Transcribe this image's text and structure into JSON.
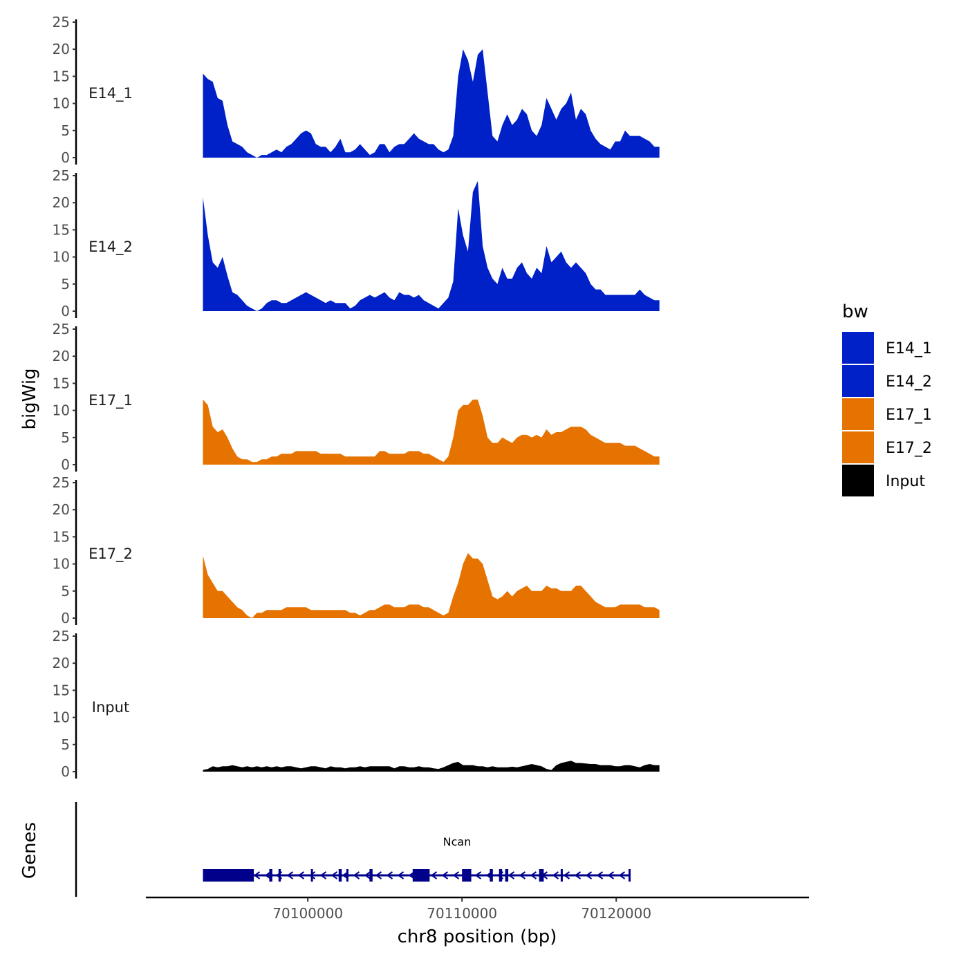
{
  "chart_data": {
    "type": "area",
    "y_axis_title": "bigWig",
    "x_axis_title": "chr8 position (bp)",
    "genes_axis_title": "Genes",
    "y_range": [
      0,
      25
    ],
    "y_ticks": [
      "0",
      "5",
      "10",
      "15",
      "20",
      "25"
    ],
    "x_range": [
      70089500,
      70132500
    ],
    "x_ticks": [
      {
        "value": 70100000,
        "label": "70100000"
      },
      {
        "value": 70110000,
        "label": "70110000"
      },
      {
        "value": 70120000,
        "label": "70120000"
      }
    ],
    "signal_range": [
      70093200,
      70122800
    ],
    "legend": {
      "title": "bw",
      "items": [
        {
          "label": "E14_1",
          "color": "#0020c8"
        },
        {
          "label": "E14_2",
          "color": "#0020c8"
        },
        {
          "label": "E17_1",
          "color": "#e67300"
        },
        {
          "label": "E17_2",
          "color": "#e67300"
        },
        {
          "label": "Input",
          "color": "#000000"
        }
      ]
    },
    "series": [
      {
        "name": "E14_1",
        "color": "#0020c8",
        "values": [
          15.5,
          14.5,
          14,
          11,
          10.5,
          6,
          3,
          2.5,
          2,
          1,
          0.5,
          0,
          0.5,
          0.5,
          1,
          1.5,
          1,
          2,
          2.5,
          3.5,
          4.5,
          5,
          4.5,
          2.5,
          2,
          2,
          1,
          2,
          3.5,
          1,
          1,
          1.5,
          2.5,
          1.5,
          0.5,
          1,
          2.5,
          2.5,
          1,
          2,
          2.5,
          2.5,
          3.5,
          4.5,
          3.5,
          3,
          2.5,
          2.5,
          1.5,
          1,
          1.5,
          4,
          15,
          20,
          18,
          14,
          19,
          20,
          12,
          4,
          3,
          6,
          8,
          6,
          7,
          9,
          8,
          5,
          4,
          6,
          11,
          9,
          7,
          9,
          10,
          12,
          7,
          9,
          8,
          5,
          3.5,
          2.5,
          2,
          1.5,
          3,
          3,
          5,
          4,
          4,
          4,
          3.5,
          3,
          2,
          2
        ]
      },
      {
        "name": "E14_2",
        "color": "#0020c8",
        "values": [
          21,
          14,
          9,
          8,
          10,
          6.5,
          3.5,
          3,
          2,
          1,
          0.5,
          0,
          0.5,
          1.5,
          2,
          2,
          1.5,
          1.5,
          2,
          2.5,
          3,
          3.5,
          3,
          2.5,
          2,
          1.5,
          2,
          1.5,
          1.5,
          1.5,
          0.5,
          1,
          2,
          2.5,
          3,
          2.5,
          3,
          3.5,
          2.5,
          2,
          3.5,
          3,
          3,
          2.5,
          3,
          2,
          1.5,
          1,
          0.5,
          1.5,
          2.5,
          5.5,
          19,
          14,
          11,
          22,
          24,
          12,
          8,
          6,
          5,
          8,
          6,
          6,
          8,
          9,
          7,
          6,
          8,
          7,
          12,
          9,
          10,
          11,
          9,
          8,
          9,
          8,
          7,
          5,
          4,
          4,
          3,
          3,
          3,
          3,
          3,
          3,
          3,
          4,
          3,
          2.5,
          2,
          2
        ]
      },
      {
        "name": "E17_1",
        "color": "#e67300",
        "values": [
          12,
          11,
          7,
          6,
          6.5,
          5,
          3,
          1.5,
          1,
          1,
          0.5,
          0.5,
          1,
          1,
          1.5,
          1.5,
          2,
          2,
          2,
          2.5,
          2.5,
          2.5,
          2.5,
          2.5,
          2,
          2,
          2,
          2,
          2,
          1.5,
          1.5,
          1.5,
          1.5,
          1.5,
          1.5,
          1.5,
          2.5,
          2.5,
          2,
          2,
          2,
          2,
          2.5,
          2.5,
          2.5,
          2,
          2,
          1.5,
          1,
          0.5,
          1.5,
          5,
          10,
          11,
          11,
          12,
          12,
          9,
          5,
          4,
          4,
          5,
          4.5,
          4,
          5,
          5.5,
          5.5,
          5,
          5.5,
          5,
          6.5,
          5.5,
          6,
          6,
          6.5,
          7,
          7,
          7,
          6.5,
          5.5,
          5,
          4.5,
          4,
          4,
          4,
          4,
          3.5,
          3.5,
          3.5,
          3,
          2.5,
          2,
          1.5,
          1.5
        ]
      },
      {
        "name": "E17_2",
        "color": "#e67300",
        "values": [
          11.5,
          8,
          6.5,
          5,
          5,
          4,
          3,
          2,
          1.5,
          0.5,
          0,
          1,
          1,
          1.5,
          1.5,
          1.5,
          1.5,
          2,
          2,
          2,
          2,
          2,
          1.5,
          1.5,
          1.5,
          1.5,
          1.5,
          1.5,
          1.5,
          1.5,
          1,
          1,
          0.5,
          1,
          1.5,
          1.5,
          2,
          2.5,
          2.5,
          2,
          2,
          2,
          2.5,
          2.5,
          2.5,
          2,
          2,
          1.5,
          1,
          0.5,
          1,
          4,
          6.5,
          10,
          12,
          11,
          11,
          10,
          7,
          4,
          3.5,
          4,
          5,
          4,
          5,
          5.5,
          6,
          5,
          5,
          5,
          6,
          5.5,
          5.5,
          5,
          5,
          5,
          6,
          6,
          5,
          4,
          3,
          2.5,
          2,
          2,
          2,
          2.5,
          2.5,
          2.5,
          2.5,
          2.5,
          2,
          2,
          2,
          1.5
        ]
      },
      {
        "name": "Input",
        "color": "#000000",
        "values": [
          0.3,
          0.5,
          1,
          0.8,
          1,
          1,
          1.2,
          1,
          0.8,
          1,
          0.8,
          1,
          0.8,
          1,
          0.8,
          1,
          0.8,
          1,
          1,
          0.8,
          0.6,
          0.8,
          1,
          1,
          0.8,
          0.6,
          1,
          0.8,
          0.8,
          0.6,
          0.8,
          0.8,
          1,
          0.8,
          1,
          1,
          1,
          1,
          1,
          0.6,
          1,
          1,
          0.8,
          0.8,
          1,
          0.8,
          0.8,
          0.6,
          0.5,
          0.8,
          1.2,
          1.6,
          1.8,
          1.2,
          1.2,
          1.2,
          1.0,
          1.0,
          0.8,
          1.0,
          0.8,
          0.8,
          0.8,
          0.9,
          0.8,
          1.0,
          1.2,
          1.4,
          1.2,
          1.0,
          0.5,
          0.3,
          1.2,
          1.6,
          1.8,
          2.0,
          1.6,
          1.6,
          1.5,
          1.4,
          1.4,
          1.2,
          1.2,
          1.2,
          1.0,
          1.0,
          1.2,
          1.2,
          1.0,
          0.8,
          1.2,
          1.4,
          1.2,
          1.2
        ]
      }
    ],
    "gene": {
      "name": "Ncan",
      "strand": "-",
      "start": 70093200,
      "end": 70120900,
      "color": "#00008b",
      "exons": [
        [
          70093200,
          70096500
        ],
        [
          70097500,
          70097700
        ],
        [
          70098100,
          70098250
        ],
        [
          70100200,
          70100300
        ],
        [
          70102000,
          70102200
        ],
        [
          70102500,
          70102600
        ],
        [
          70104000,
          70104200
        ],
        [
          70106800,
          70107900
        ],
        [
          70110000,
          70110600
        ],
        [
          70111800,
          70112000
        ],
        [
          70112400,
          70112600
        ],
        [
          70112800,
          70113000
        ],
        [
          70115000,
          70115300
        ],
        [
          70116400,
          70116500
        ],
        [
          70120800,
          70120900
        ]
      ]
    }
  }
}
